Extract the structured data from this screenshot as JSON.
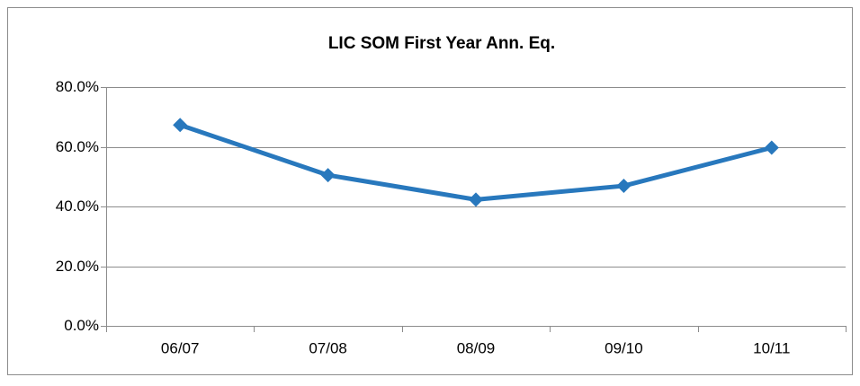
{
  "chart_data": {
    "type": "line",
    "title": "LIC SOM First Year Ann. Eq.",
    "categories": [
      "06/07",
      "07/08",
      "08/09",
      "09/10",
      "10/11"
    ],
    "values": [
      67.3,
      50.5,
      42.3,
      46.9,
      59.7
    ],
    "color": "#2878bd",
    "ylim": [
      0,
      80
    ],
    "yticks": [
      {
        "value": 0,
        "label": "0.0%"
      },
      {
        "value": 20,
        "label": "20.0%"
      },
      {
        "value": 40,
        "label": "40.0%"
      },
      {
        "value": 60,
        "label": "60.0%"
      },
      {
        "value": 80,
        "label": "80.0%"
      }
    ],
    "grid": true
  }
}
